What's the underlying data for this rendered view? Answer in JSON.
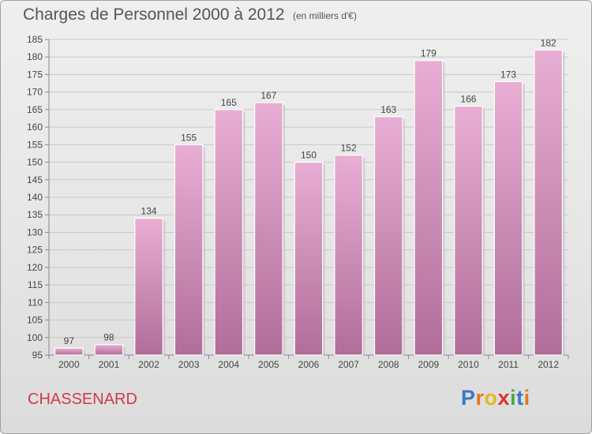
{
  "header": {
    "title": "Charges de Personnel 2000 à 2012",
    "unit_note": "(en milliers d'€)"
  },
  "footer": {
    "commune": "CHASSENARD",
    "logo_text": "Proxiti",
    "logo_letters": [
      {
        "char": "P",
        "color": "#3a78c8"
      },
      {
        "char": "r",
        "color": "#e07a1c"
      },
      {
        "char": "o",
        "color": "#e5b820"
      },
      {
        "char": "x",
        "color": "#d8342c"
      },
      {
        "char": "i",
        "color": "#4aa83c"
      },
      {
        "char": "t",
        "color": "#3a78c8"
      },
      {
        "char": "i",
        "color": "#e07a1c"
      }
    ]
  },
  "colors": {
    "bar_light": "#e9aed3",
    "bar_dark": "#b06e98",
    "gridline": "#c8c8c8",
    "axis": "#888888"
  },
  "chart_data": {
    "type": "bar",
    "title": "Charges de Personnel 2000 à 2012",
    "subtitle": "(en milliers d'€)",
    "xlabel": "",
    "ylabel": "",
    "categories": [
      "2000",
      "2001",
      "2002",
      "2003",
      "2004",
      "2005",
      "2006",
      "2007",
      "2008",
      "2009",
      "2010",
      "2011",
      "2012"
    ],
    "values": [
      97,
      98,
      134,
      155,
      165,
      167,
      150,
      152,
      163,
      179,
      166,
      173,
      182
    ],
    "ylim": [
      95,
      185
    ],
    "yticks": [
      95,
      100,
      105,
      110,
      115,
      120,
      125,
      130,
      135,
      140,
      145,
      150,
      155,
      160,
      165,
      170,
      175,
      180,
      185
    ],
    "grid": true,
    "legend": "none",
    "data_labels": true
  }
}
